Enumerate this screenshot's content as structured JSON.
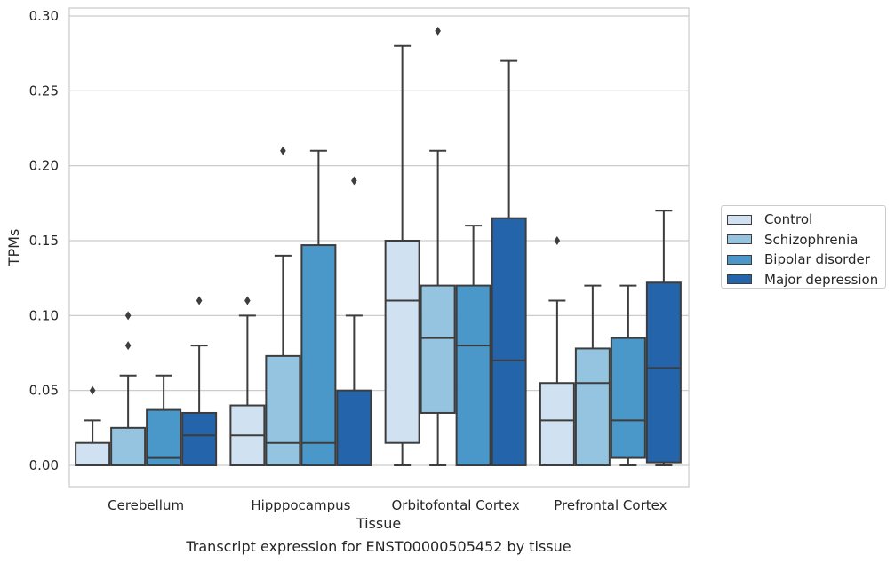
{
  "caption": "Transcript expression for ENST00000505452 by tissue",
  "chart_data": {
    "type": "box",
    "title": "",
    "xlabel": "Tissue",
    "ylabel": "TPMs",
    "ylim": [
      -0.014,
      0.305
    ],
    "yticks": [
      0.0,
      0.05,
      0.1,
      0.15,
      0.2,
      0.25,
      0.3
    ],
    "ytick_labels": [
      "0.00",
      "0.05",
      "0.10",
      "0.15",
      "0.20",
      "0.25",
      "0.30"
    ],
    "grid": true,
    "legend_position": "right",
    "categories": [
      "Cerebellum",
      "Hipppocampus",
      "Orbitofontal Cortex",
      "Prefrontal Cortex"
    ],
    "series": [
      {
        "name": "Control",
        "color": "#d0e1f2",
        "boxes": [
          {
            "whislo": 0,
            "q1": 0,
            "med": 0,
            "q3": 0.015,
            "whishi": 0.03,
            "fliers": [
              0.05
            ]
          },
          {
            "whislo": 0,
            "q1": 0,
            "med": 0.02,
            "q3": 0.04,
            "whishi": 0.1,
            "fliers": [
              0.11
            ]
          },
          {
            "whislo": 0,
            "q1": 0.015,
            "med": 0.11,
            "q3": 0.15,
            "whishi": 0.28,
            "fliers": []
          },
          {
            "whislo": 0,
            "q1": 0,
            "med": 0.03,
            "q3": 0.055,
            "whishi": 0.11,
            "fliers": [
              0.15
            ]
          }
        ]
      },
      {
        "name": "Schizophrenia",
        "color": "#94c4df",
        "boxes": [
          {
            "whislo": 0,
            "q1": 0,
            "med": 0,
            "q3": 0.025,
            "whishi": 0.06,
            "fliers": [
              0.08,
              0.1
            ]
          },
          {
            "whislo": 0,
            "q1": 0,
            "med": 0.015,
            "q3": 0.073,
            "whishi": 0.14,
            "fliers": [
              0.21
            ]
          },
          {
            "whislo": 0,
            "q1": 0.035,
            "med": 0.085,
            "q3": 0.12,
            "whishi": 0.21,
            "fliers": [
              0.29
            ]
          },
          {
            "whislo": 0,
            "q1": 0,
            "med": 0.055,
            "q3": 0.078,
            "whishi": 0.12,
            "fliers": []
          }
        ]
      },
      {
        "name": "Bipolar disorder",
        "color": "#4a98c9",
        "boxes": [
          {
            "whislo": 0,
            "q1": 0,
            "med": 0.005,
            "q3": 0.037,
            "whishi": 0.06,
            "fliers": []
          },
          {
            "whislo": 0,
            "q1": 0,
            "med": 0.015,
            "q3": 0.147,
            "whishi": 0.21,
            "fliers": []
          },
          {
            "whislo": 0,
            "q1": 0,
            "med": 0.08,
            "q3": 0.12,
            "whishi": 0.16,
            "fliers": []
          },
          {
            "whislo": 0,
            "q1": 0.005,
            "med": 0.03,
            "q3": 0.085,
            "whishi": 0.12,
            "fliers": []
          }
        ]
      },
      {
        "name": "Major depression",
        "color": "#2364aa",
        "boxes": [
          {
            "whislo": 0,
            "q1": 0,
            "med": 0.02,
            "q3": 0.035,
            "whishi": 0.08,
            "fliers": [
              0.11
            ]
          },
          {
            "whislo": 0,
            "q1": 0,
            "med": 0,
            "q3": 0.05,
            "whishi": 0.1,
            "fliers": [
              0.19
            ]
          },
          {
            "whislo": 0,
            "q1": 0,
            "med": 0.07,
            "q3": 0.165,
            "whishi": 0.27,
            "fliers": []
          },
          {
            "whislo": 0,
            "q1": 0.002,
            "med": 0.065,
            "q3": 0.122,
            "whishi": 0.17,
            "fliers": []
          }
        ]
      }
    ]
  }
}
